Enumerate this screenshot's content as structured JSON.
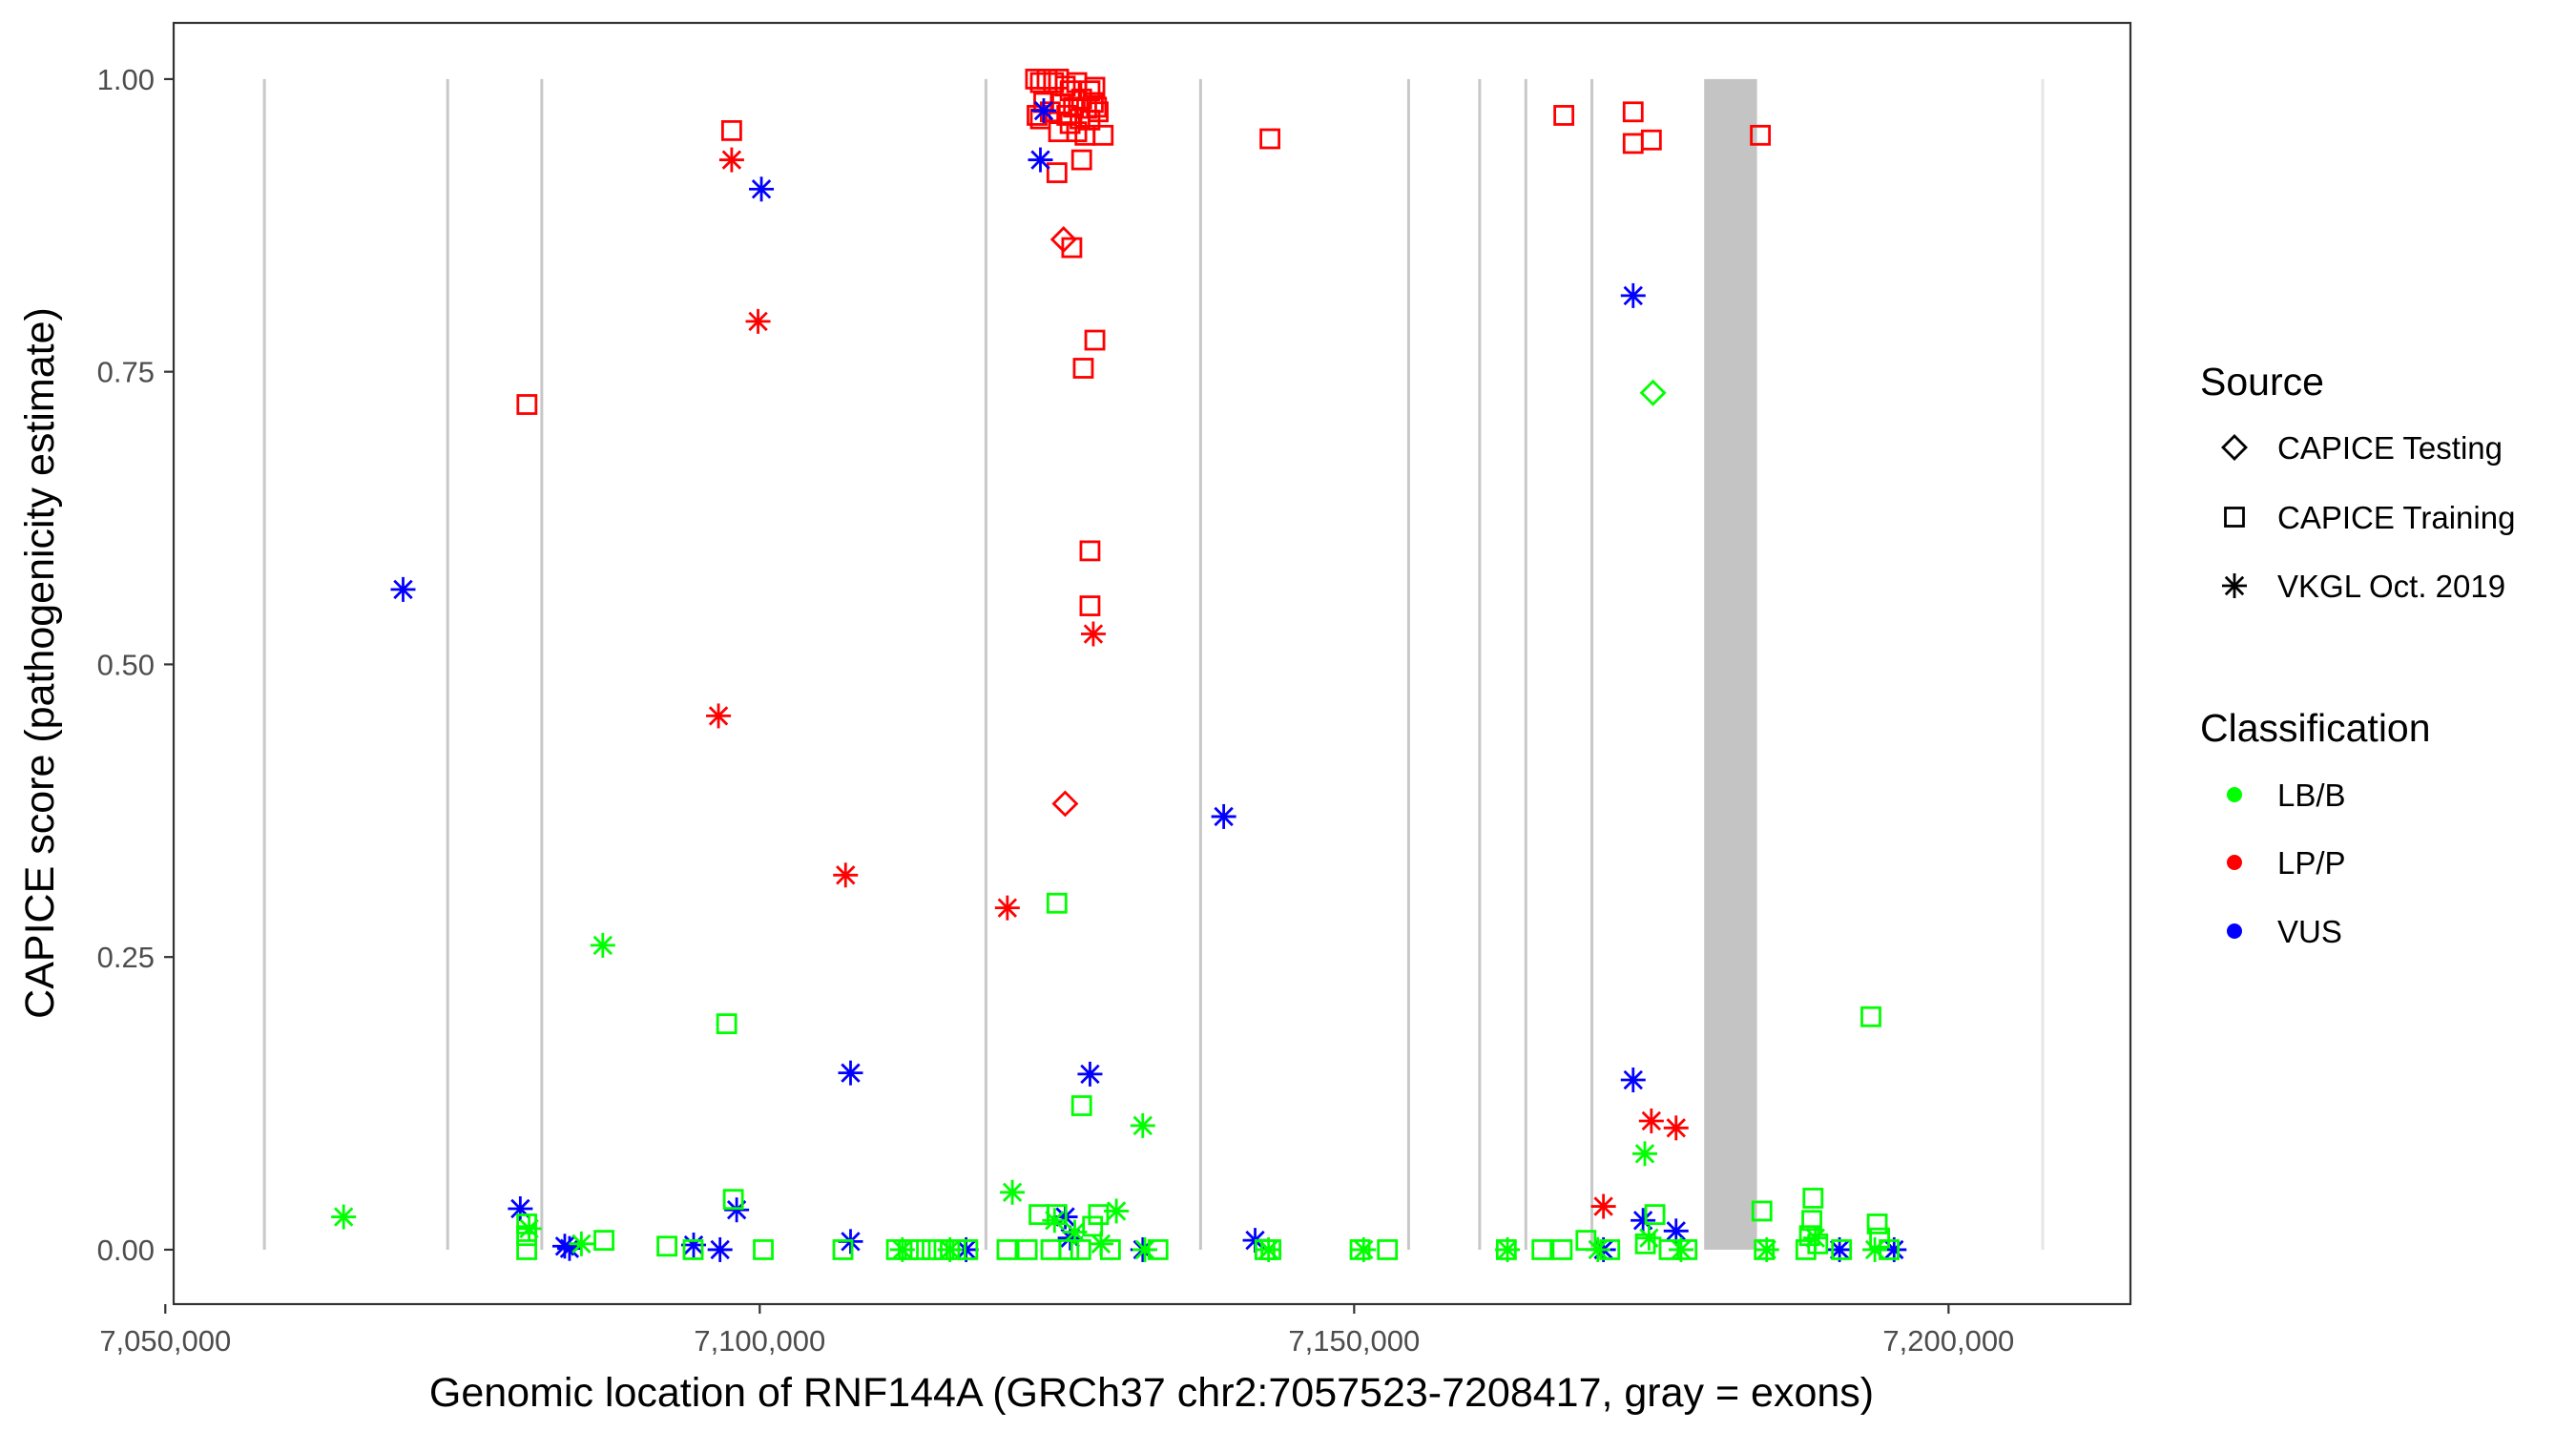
{
  "chart_data": {
    "type": "scatter",
    "xlabel": "Genomic location of RNF144A (GRCh37 chr2:7057523-7208417, gray = exons)",
    "ylabel": "CAPICE score (pathogenicity estimate)",
    "xlim": [
      7050700,
      7215300
    ],
    "ylim": [
      -0.0465,
      1.048
    ],
    "xticks": [
      7050000,
      7100000,
      7150000,
      7200000
    ],
    "xtick_labels": [
      "7,050,000",
      "7,100,000",
      "7,150,000",
      "7,200,000"
    ],
    "yticks": [
      0,
      0.25,
      0.5,
      0.75,
      1.0
    ],
    "ytick_labels": [
      "0.00",
      "0.25",
      "0.50",
      "0.75",
      "1.00"
    ],
    "grid": false,
    "exon_lines": [
      7058333,
      7073750,
      7081667,
      7119028,
      7137083,
      7154583,
      7160556,
      7164444,
      7170000,
      7207917
    ],
    "exon_band": [
      7179444,
      7183889
    ],
    "legend_placement": "right",
    "legend": {
      "source_title": "Source",
      "sources": [
        {
          "code": "T",
          "label": "CAPICE Testing",
          "shape": "diamond"
        },
        {
          "code": "R",
          "label": "CAPICE Training",
          "shape": "square"
        },
        {
          "code": "V",
          "label": "VKGL Oct. 2019",
          "shape": "asterisk"
        }
      ],
      "class_title": "Classification",
      "classes": [
        {
          "code": "B",
          "label": "LB/B",
          "color": "#00ff00"
        },
        {
          "code": "P",
          "label": "LP/P",
          "color": "#ff0000"
        },
        {
          "code": "U",
          "label": "VUS",
          "color": "#0000ff"
        }
      ]
    },
    "points_format": [
      "position",
      "score",
      "source",
      "classification"
    ],
    "points": [
      [
        7097640,
        0.956,
        "R",
        "P"
      ],
      [
        7097640,
        0.931,
        "V",
        "P"
      ],
      [
        7099860,
        0.793,
        "V",
        "P"
      ],
      [
        7096530,
        0.456,
        "V",
        "P"
      ],
      [
        7107220,
        0.32,
        "V",
        "P"
      ],
      [
        7120830,
        0.292,
        "V",
        "P"
      ],
      [
        7080420,
        0.722,
        "R",
        "P"
      ],
      [
        7123200,
        1.0,
        "R",
        "P"
      ],
      [
        7123610,
        0.997,
        "R",
        "P"
      ],
      [
        7124170,
        1.0,
        "R",
        "P"
      ],
      [
        7124720,
        0.997,
        "R",
        "P"
      ],
      [
        7125140,
        1.0,
        "R",
        "P"
      ],
      [
        7125700,
        0.994,
        "R",
        "P"
      ],
      [
        7126110,
        0.99,
        "R",
        "P"
      ],
      [
        7126670,
        0.997,
        "R",
        "P"
      ],
      [
        7127080,
        0.983,
        "R",
        "P"
      ],
      [
        7127780,
        0.99,
        "R",
        "P"
      ],
      [
        7128190,
        0.993,
        "R",
        "P"
      ],
      [
        7123890,
        0.98,
        "R",
        "P"
      ],
      [
        7124440,
        0.972,
        "R",
        "P"
      ],
      [
        7125280,
        0.979,
        "R",
        "P"
      ],
      [
        7125830,
        0.969,
        "R",
        "P"
      ],
      [
        7126390,
        0.976,
        "R",
        "P"
      ],
      [
        7126940,
        0.966,
        "R",
        "P"
      ],
      [
        7127500,
        0.975,
        "R",
        "P"
      ],
      [
        7128060,
        0.98,
        "R",
        "P"
      ],
      [
        7128470,
        0.972,
        "R",
        "P"
      ],
      [
        7123330,
        0.969,
        "R",
        "P"
      ],
      [
        7125140,
        0.955,
        "R",
        "P"
      ],
      [
        7126110,
        0.962,
        "R",
        "P"
      ],
      [
        7126670,
        0.955,
        "R",
        "P"
      ],
      [
        7127360,
        0.952,
        "R",
        "P"
      ],
      [
        7127780,
        0.965,
        "R",
        "P"
      ],
      [
        7128330,
        0.976,
        "R",
        "P"
      ],
      [
        7123610,
        0.966,
        "R",
        "P"
      ],
      [
        7125000,
        0.92,
        "R",
        "P"
      ],
      [
        7127080,
        0.931,
        "R",
        "P"
      ],
      [
        7128890,
        0.952,
        "R",
        "P"
      ],
      [
        7125560,
        0.863,
        "T",
        "P"
      ],
      [
        7126250,
        0.856,
        "R",
        "P"
      ],
      [
        7128190,
        0.777,
        "R",
        "P"
      ],
      [
        7127220,
        0.753,
        "R",
        "P"
      ],
      [
        7127780,
        0.597,
        "R",
        "P"
      ],
      [
        7127780,
        0.55,
        "R",
        "P"
      ],
      [
        7128060,
        0.526,
        "V",
        "P"
      ],
      [
        7125690,
        0.381,
        "T",
        "P"
      ],
      [
        7142920,
        0.949,
        "R",
        "P"
      ],
      [
        7167640,
        0.969,
        "R",
        "P"
      ],
      [
        7173470,
        0.972,
        "R",
        "P"
      ],
      [
        7173470,
        0.945,
        "R",
        "P"
      ],
      [
        7175000,
        0.948,
        "R",
        "P"
      ],
      [
        7184170,
        0.952,
        "R",
        "P"
      ],
      [
        7170970,
        0.037,
        "V",
        "P"
      ],
      [
        7175000,
        0.11,
        "V",
        "P"
      ],
      [
        7177080,
        0.104,
        "V",
        "P"
      ],
      [
        7070000,
        0.564,
        "V",
        "U"
      ],
      [
        7100140,
        0.906,
        "V",
        "U"
      ],
      [
        7123890,
        0.973,
        "V",
        "U"
      ],
      [
        7123610,
        0.931,
        "V",
        "U"
      ],
      [
        7139030,
        0.37,
        "V",
        "U"
      ],
      [
        7173470,
        0.815,
        "V",
        "U"
      ],
      [
        7107640,
        0.151,
        "V",
        "U"
      ],
      [
        7127780,
        0.15,
        "V",
        "U"
      ],
      [
        7173470,
        0.145,
        "V",
        "U"
      ],
      [
        7079860,
        0.035,
        "V",
        "U"
      ],
      [
        7098060,
        0.034,
        "V",
        "U"
      ],
      [
        7125700,
        0.028,
        "V",
        "U"
      ],
      [
        7174300,
        0.025,
        "V",
        "U"
      ],
      [
        7177080,
        0.016,
        "V",
        "U"
      ],
      [
        7126110,
        0.01,
        "V",
        "U"
      ],
      [
        7083600,
        0.003,
        "V",
        "U"
      ],
      [
        7084000,
        0.001,
        "V",
        "U"
      ],
      [
        7094440,
        0.004,
        "V",
        "U"
      ],
      [
        7096660,
        0.0,
        "V",
        "U"
      ],
      [
        7107640,
        0.007,
        "V",
        "U"
      ],
      [
        7117360,
        0.0,
        "V",
        "U"
      ],
      [
        7132220,
        0.0,
        "V",
        "U"
      ],
      [
        7141670,
        0.008,
        "V",
        "U"
      ],
      [
        7170970,
        0.0,
        "V",
        "U"
      ],
      [
        7190830,
        0.0,
        "V",
        "U"
      ],
      [
        7195420,
        0.0,
        "V",
        "U"
      ],
      [
        7065000,
        0.028,
        "V",
        "B"
      ],
      [
        7086800,
        0.26,
        "V",
        "B"
      ],
      [
        7097220,
        0.193,
        "R",
        "B"
      ],
      [
        7125000,
        0.296,
        "R",
        "B"
      ],
      [
        7127080,
        0.123,
        "R",
        "B"
      ],
      [
        7132220,
        0.106,
        "V",
        "B"
      ],
      [
        7121250,
        0.049,
        "V",
        "B"
      ],
      [
        7174450,
        0.082,
        "V",
        "B"
      ],
      [
        7175140,
        0.732,
        "T",
        "B"
      ],
      [
        7193470,
        0.199,
        "R",
        "B"
      ],
      [
        7097780,
        0.043,
        "R",
        "B"
      ],
      [
        7080400,
        0.0,
        "R",
        "B"
      ],
      [
        7080400,
        0.012,
        "R",
        "B"
      ],
      [
        7080400,
        0.022,
        "R",
        "B"
      ],
      [
        7080600,
        0.018,
        "V",
        "B"
      ],
      [
        7086900,
        0.008,
        "R",
        "B"
      ],
      [
        7085000,
        0.005,
        "V",
        "B"
      ],
      [
        7092200,
        0.003,
        "R",
        "B"
      ],
      [
        7094400,
        0.0,
        "R",
        "B"
      ],
      [
        7100300,
        0.0,
        "R",
        "B"
      ],
      [
        7107000,
        0.0,
        "R",
        "B"
      ],
      [
        7111500,
        0.0,
        "R",
        "B"
      ],
      [
        7112000,
        0.0,
        "V",
        "B"
      ],
      [
        7112500,
        0.0,
        "R",
        "B"
      ],
      [
        7113500,
        0.0,
        "R",
        "B"
      ],
      [
        7114500,
        0.0,
        "R",
        "B"
      ],
      [
        7115500,
        0.0,
        "R",
        "B"
      ],
      [
        7116000,
        0.0,
        "V",
        "B"
      ],
      [
        7116500,
        0.0,
        "R",
        "B"
      ],
      [
        7117500,
        0.0,
        "R",
        "B"
      ],
      [
        7120800,
        0.0,
        "R",
        "B"
      ],
      [
        7122500,
        0.0,
        "R",
        "B"
      ],
      [
        7123500,
        0.03,
        "R",
        "B"
      ],
      [
        7124500,
        0.0,
        "R",
        "B"
      ],
      [
        7124800,
        0.025,
        "V",
        "B"
      ],
      [
        7125000,
        0.03,
        "R",
        "B"
      ],
      [
        7126000,
        0.0,
        "R",
        "B"
      ],
      [
        7126500,
        0.015,
        "V",
        "B"
      ],
      [
        7127000,
        0.0,
        "R",
        "B"
      ],
      [
        7128000,
        0.02,
        "R",
        "B"
      ],
      [
        7128500,
        0.03,
        "R",
        "B"
      ],
      [
        7128700,
        0.005,
        "V",
        "B"
      ],
      [
        7129500,
        0.0,
        "R",
        "B"
      ],
      [
        7130000,
        0.033,
        "V",
        "B"
      ],
      [
        7132400,
        0.0,
        "V",
        "B"
      ],
      [
        7133500,
        0.0,
        "R",
        "B"
      ],
      [
        7142500,
        0.0,
        "R",
        "B"
      ],
      [
        7142800,
        0.0,
        "V",
        "B"
      ],
      [
        7143000,
        0.0,
        "R",
        "B"
      ],
      [
        7150500,
        0.0,
        "R",
        "B"
      ],
      [
        7150800,
        0.0,
        "V",
        "B"
      ],
      [
        7152800,
        0.0,
        "R",
        "B"
      ],
      [
        7162800,
        0.0,
        "R",
        "B"
      ],
      [
        7162900,
        0.0,
        "V",
        "B"
      ],
      [
        7165800,
        0.0,
        "R",
        "B"
      ],
      [
        7167500,
        0.0,
        "R",
        "B"
      ],
      [
        7169500,
        0.008,
        "R",
        "B"
      ],
      [
        7170500,
        0.0,
        "V",
        "B"
      ],
      [
        7171500,
        0.0,
        "R",
        "B"
      ],
      [
        7174500,
        0.005,
        "R",
        "B"
      ],
      [
        7174800,
        0.01,
        "V",
        "B"
      ],
      [
        7175300,
        0.03,
        "R",
        "B"
      ],
      [
        7176500,
        0.0,
        "R",
        "B"
      ],
      [
        7177500,
        0.0,
        "V",
        "B"
      ],
      [
        7178000,
        0.0,
        "R",
        "B"
      ],
      [
        7184300,
        0.033,
        "R",
        "B"
      ],
      [
        7184500,
        0.0,
        "R",
        "B"
      ],
      [
        7184700,
        0.0,
        "V",
        "B"
      ],
      [
        7188000,
        0.0,
        "R",
        "B"
      ],
      [
        7188300,
        0.012,
        "R",
        "B"
      ],
      [
        7188500,
        0.025,
        "R",
        "B"
      ],
      [
        7188600,
        0.044,
        "R",
        "B"
      ],
      [
        7188800,
        0.01,
        "V",
        "B"
      ],
      [
        7189000,
        0.005,
        "R",
        "B"
      ],
      [
        7191000,
        0.0,
        "R",
        "B"
      ],
      [
        7193800,
        0.0,
        "V",
        "B"
      ],
      [
        7194000,
        0.022,
        "R",
        "B"
      ],
      [
        7194200,
        0.01,
        "R",
        "B"
      ],
      [
        7195000,
        0.0,
        "R",
        "B"
      ]
    ]
  }
}
